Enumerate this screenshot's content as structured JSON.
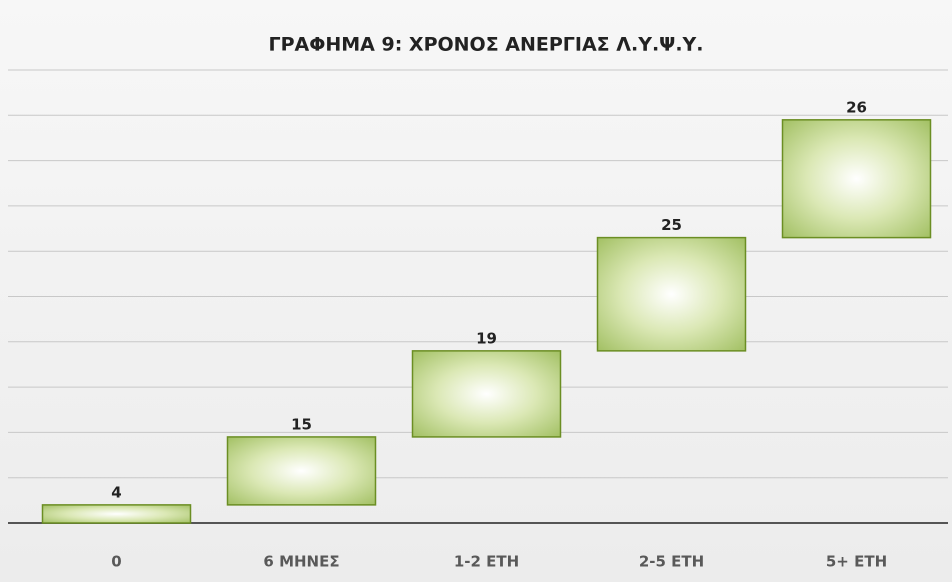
{
  "chart_data": {
    "type": "waterfall",
    "title": "ΓΡΑΦΗΜΑ 9: ΧΡΟΝΟΣ ΑΝΕΡΓΙΑΣ Λ.Υ.Ψ.Υ.",
    "categories": [
      "0",
      "6 ΜΗΝΕΣ",
      "1-2 ΕΤΗ",
      "2-5 ΕΤΗ",
      "5+ ΕΤΗ"
    ],
    "values": [
      4,
      15,
      19,
      25,
      26
    ],
    "color": "#9bbb59",
    "ylim": [
      0,
      100
    ],
    "yticks": [
      0,
      10,
      20,
      30,
      40,
      50,
      60,
      70,
      80,
      90,
      100
    ],
    "grid": true
  }
}
